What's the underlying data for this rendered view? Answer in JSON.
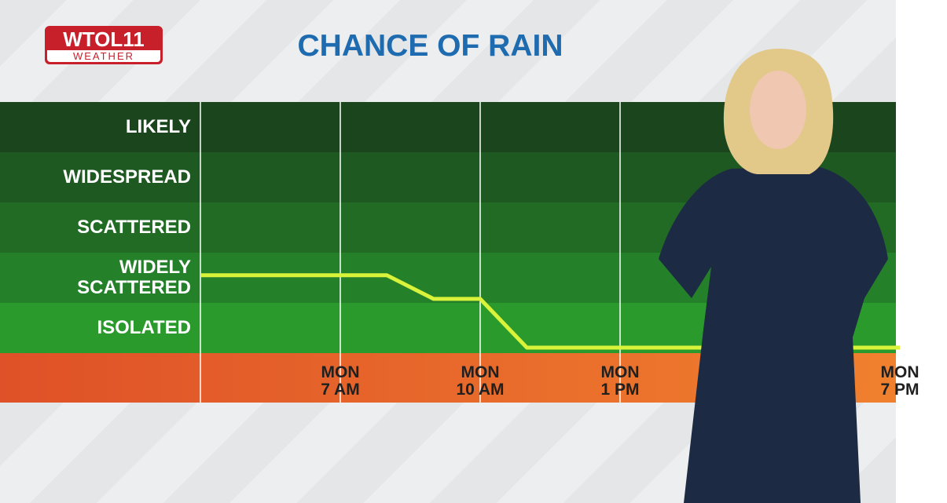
{
  "logo": {
    "name": "WTOL11",
    "subtitle": "WEATHER"
  },
  "chart_data": {
    "type": "line",
    "title": "CHANCE OF RAIN",
    "xlim": [
      4,
      19
    ],
    "xticks": [
      {
        "value": 7,
        "label": "MON\n7 AM"
      },
      {
        "value": 10,
        "label": "MON\n10 AM"
      },
      {
        "value": 13,
        "label": "MON\n1 PM"
      },
      {
        "value": 19,
        "label": "MON\n7 PM"
      }
    ],
    "ylim": [
      0,
      5
    ],
    "yticks": [
      {
        "value": 0.5,
        "label": "ISOLATED"
      },
      {
        "value": 1.5,
        "label": "WIDELY\nSCATTERED"
      },
      {
        "value": 2.5,
        "label": "SCATTERED"
      },
      {
        "value": 3.5,
        "label": "WIDESPREAD"
      },
      {
        "value": 4.5,
        "label": "LIKELY"
      }
    ],
    "band_colors": [
      "#2a9a2c",
      "#24812a",
      "#216b25",
      "#1e5922",
      "#1b461d"
    ],
    "grid": true,
    "series": [
      {
        "color": "#d9f23a",
        "x": [
          4,
          8,
          9,
          10,
          11,
          19
        ],
        "values": [
          1.55,
          1.55,
          1.08,
          1.08,
          0.11,
          0.11
        ]
      }
    ]
  }
}
